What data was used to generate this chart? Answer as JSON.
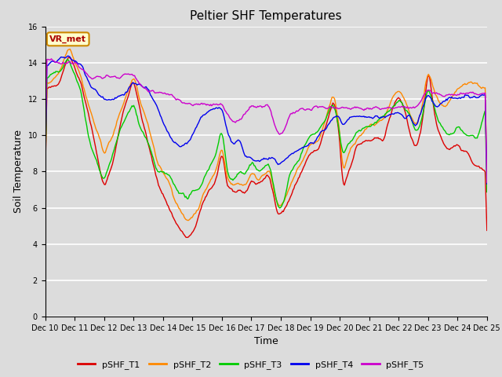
{
  "title": "Peltier SHF Temperatures",
  "xlabel": "Time",
  "ylabel": "Soil Temperature",
  "annotation": "VR_met",
  "xlim": [
    0,
    15
  ],
  "ylim": [
    0,
    16
  ],
  "yticks": [
    0,
    2,
    4,
    6,
    8,
    10,
    12,
    14,
    16
  ],
  "xtick_labels": [
    "Dec 10",
    "Dec 11",
    "Dec 12",
    "Dec 13",
    "Dec 14",
    "Dec 15",
    "Dec 16",
    "Dec 17",
    "Dec 18",
    "Dec 19",
    "Dec 20",
    "Dec 21",
    "Dec 22",
    "Dec 23",
    "Dec 24",
    "Dec 25"
  ],
  "series_colors": [
    "#dd0000",
    "#ff8800",
    "#00cc00",
    "#0000ee",
    "#cc00cc"
  ],
  "series_labels": [
    "pSHF_T1",
    "pSHF_T2",
    "pSHF_T3",
    "pSHF_T4",
    "pSHF_T5"
  ],
  "plot_bg_color": "#dcdcdc",
  "fig_bg_color": "#dcdcdc",
  "title_fontsize": 11,
  "axis_label_fontsize": 9,
  "tick_fontsize": 7,
  "legend_fontsize": 8,
  "line_width": 1.0,
  "annotation_facecolor": "#ffffcc",
  "annotation_edgecolor": "#cc8800",
  "annotation_textcolor": "#aa0000"
}
